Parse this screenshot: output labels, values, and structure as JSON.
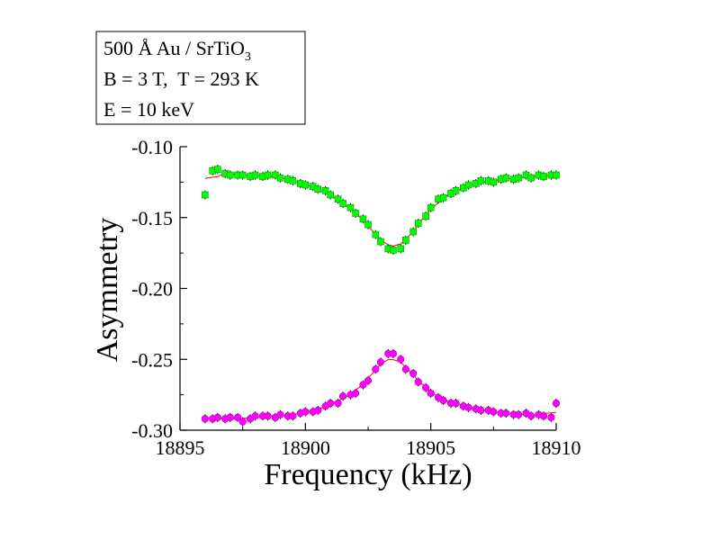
{
  "chart_data": {
    "type": "scatter",
    "title": "",
    "xlabel": "Frequency (kHz)",
    "ylabel": "Asymmetry",
    "xlim": [
      18895,
      18910
    ],
    "ylim": [
      -0.3,
      -0.1
    ],
    "x_ticks": [
      18895,
      18900,
      18905,
      18910
    ],
    "x_tick_labels": [
      "18895",
      "18900",
      "18905",
      "18910"
    ],
    "y_ticks": [
      -0.3,
      -0.25,
      -0.2,
      -0.15,
      -0.1
    ],
    "y_tick_labels": [
      "-0.30",
      "-0.25",
      "-0.20",
      "-0.15",
      "-0.10"
    ],
    "grid": false,
    "annotation": {
      "line1_main": "500 Å Au / SrTiO",
      "line1_sub": "3",
      "line2": "B = 3 T,  T = 293 K",
      "line3": "E = 10 keV"
    },
    "series": [
      {
        "marker": "square",
        "color": "#00ff00",
        "fit_color": "#ff0000",
        "x": [
          18896.0,
          18896.3,
          18896.5,
          18896.8,
          18897.0,
          18897.3,
          18897.5,
          18897.8,
          18898.0,
          18898.3,
          18898.5,
          18898.8,
          18899.0,
          18899.3,
          18899.5,
          18899.8,
          18900.0,
          18900.3,
          18900.5,
          18900.8,
          18901.0,
          18901.3,
          18901.5,
          18901.8,
          18902.0,
          18902.3,
          18902.5,
          18902.8,
          18903.0,
          18903.3,
          18903.5,
          18903.8,
          18904.0,
          18904.3,
          18904.5,
          18904.8,
          18905.0,
          18905.3,
          18905.5,
          18905.8,
          18906.0,
          18906.3,
          18906.5,
          18906.8,
          18907.0,
          18907.3,
          18907.5,
          18907.8,
          18908.0,
          18908.3,
          18908.5,
          18908.8,
          18909.0,
          18909.3,
          18909.5,
          18909.8,
          18910.0
        ],
        "y": [
          -0.134,
          -0.117,
          -0.116,
          -0.119,
          -0.12,
          -0.12,
          -0.12,
          -0.121,
          -0.12,
          -0.121,
          -0.12,
          -0.12,
          -0.122,
          -0.123,
          -0.124,
          -0.126,
          -0.127,
          -0.128,
          -0.13,
          -0.131,
          -0.134,
          -0.137,
          -0.14,
          -0.143,
          -0.147,
          -0.151,
          -0.155,
          -0.162,
          -0.167,
          -0.172,
          -0.173,
          -0.172,
          -0.166,
          -0.16,
          -0.154,
          -0.149,
          -0.143,
          -0.137,
          -0.136,
          -0.133,
          -0.131,
          -0.129,
          -0.127,
          -0.126,
          -0.124,
          -0.124,
          -0.125,
          -0.123,
          -0.122,
          -0.123,
          -0.122,
          -0.12,
          -0.122,
          -0.12,
          -0.121,
          -0.12,
          -0.12
        ]
      },
      {
        "marker": "circle",
        "color": "#ff00ff",
        "fit_color": "#ff0000",
        "x": [
          18896.0,
          18896.3,
          18896.5,
          18896.8,
          18897.0,
          18897.3,
          18897.5,
          18897.8,
          18898.0,
          18898.3,
          18898.5,
          18898.8,
          18899.0,
          18899.3,
          18899.5,
          18899.8,
          18900.0,
          18900.3,
          18900.5,
          18900.8,
          18901.0,
          18901.3,
          18901.5,
          18901.8,
          18902.0,
          18902.3,
          18902.5,
          18902.8,
          18903.0,
          18903.3,
          18903.5,
          18903.8,
          18904.0,
          18904.3,
          18904.5,
          18904.8,
          18905.0,
          18905.3,
          18905.5,
          18905.8,
          18906.0,
          18906.3,
          18906.5,
          18906.8,
          18907.0,
          18907.3,
          18907.5,
          18907.8,
          18908.0,
          18908.3,
          18908.5,
          18908.8,
          18909.0,
          18909.3,
          18909.5,
          18909.8,
          18910.0
        ],
        "y": [
          -0.292,
          -0.292,
          -0.291,
          -0.292,
          -0.291,
          -0.291,
          -0.294,
          -0.292,
          -0.29,
          -0.29,
          -0.29,
          -0.291,
          -0.289,
          -0.29,
          -0.29,
          -0.288,
          -0.287,
          -0.287,
          -0.286,
          -0.283,
          -0.281,
          -0.281,
          -0.276,
          -0.275,
          -0.274,
          -0.268,
          -0.265,
          -0.257,
          -0.252,
          -0.246,
          -0.246,
          -0.25,
          -0.257,
          -0.26,
          -0.266,
          -0.27,
          -0.274,
          -0.277,
          -0.279,
          -0.281,
          -0.281,
          -0.283,
          -0.284,
          -0.285,
          -0.286,
          -0.286,
          -0.287,
          -0.288,
          -0.288,
          -0.289,
          -0.289,
          -0.288,
          -0.29,
          -0.289,
          -0.29,
          -0.291,
          -0.281
        ]
      }
    ]
  }
}
